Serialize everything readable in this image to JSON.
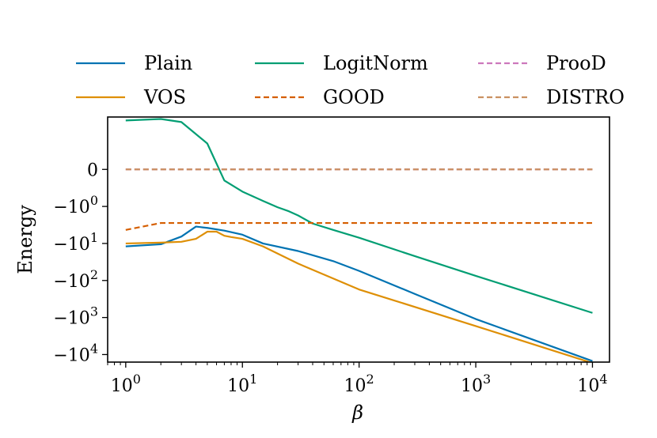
{
  "chart_data": {
    "type": "line",
    "title": "",
    "xlabel": "β",
    "ylabel": "Energy",
    "xscale": "log",
    "yscale": "symlog",
    "xlim": [
      0.7,
      14000
    ],
    "ylim": [
      -16000,
      2.6
    ],
    "xticks": [
      {
        "value": 1,
        "base": "10",
        "exp": "0"
      },
      {
        "value": 10,
        "base": "10",
        "exp": "1"
      },
      {
        "value": 100,
        "base": "10",
        "exp": "2"
      },
      {
        "value": 1000,
        "base": "10",
        "exp": "3"
      },
      {
        "value": 10000,
        "base": "10",
        "exp": "4"
      }
    ],
    "yticks": [
      {
        "value": 0,
        "text": "0",
        "base": "",
        "exp": ""
      },
      {
        "value": -1,
        "text": "",
        "base": "−10",
        "exp": "0"
      },
      {
        "value": -10,
        "text": "",
        "base": "−10",
        "exp": "1"
      },
      {
        "value": -100,
        "text": "",
        "base": "−10",
        "exp": "2"
      },
      {
        "value": -1000,
        "text": "",
        "base": "−10",
        "exp": "3"
      },
      {
        "value": -10000,
        "text": "",
        "base": "−10",
        "exp": "4"
      }
    ],
    "legend_position": "top",
    "series": [
      {
        "name": "Plain",
        "color": "#0173b2",
        "dash": "solid",
        "x": [
          1,
          2,
          3,
          4,
          5,
          7,
          10,
          15,
          30,
          60,
          100,
          300,
          1000,
          10000
        ],
        "y": [
          -12,
          -10.5,
          -6.5,
          -3.5,
          -3.8,
          -4.5,
          -5.8,
          -10,
          -16,
          -30,
          -55,
          -230,
          -1100,
          -15000
        ]
      },
      {
        "name": "VOS",
        "color": "#de8f05",
        "dash": "solid",
        "x": [
          1,
          2,
          3,
          4,
          5,
          6,
          7,
          8,
          10,
          15,
          30,
          100,
          1000,
          10000
        ],
        "y": [
          -10,
          -9.5,
          -9,
          -7.5,
          -4.8,
          -4.8,
          -6.2,
          -6.7,
          -7.5,
          -12,
          -35,
          -175,
          -1700,
          -17000
        ]
      },
      {
        "name": "LogitNorm",
        "color": "#029e73",
        "dash": "solid",
        "x": [
          1,
          2,
          3,
          5,
          7,
          10,
          15,
          20,
          25,
          30,
          40,
          60,
          100,
          300,
          1000,
          10000
        ],
        "y": [
          2.1,
          2.3,
          1.9,
          0.7,
          -0.3,
          -0.6,
          -0.85,
          -1.05,
          -1.35,
          -1.75,
          -2.9,
          -4.3,
          -7,
          -22,
          -75,
          -750
        ]
      },
      {
        "name": "GOOD",
        "color": "#d55e00",
        "dash": "dashed",
        "x": [
          1,
          2,
          10,
          100,
          1000,
          10000
        ],
        "y": [
          -4.3,
          -2.8,
          -2.8,
          -2.8,
          -2.8,
          -2.8
        ]
      },
      {
        "name": "ProoD",
        "color": "#cc78bc",
        "dash": "dashed",
        "x": [
          1,
          10000
        ],
        "y": [
          0,
          0
        ]
      },
      {
        "name": "DISTRO",
        "color": "#ca9161",
        "dash": "dashed",
        "x": [
          1,
          10,
          100,
          1000,
          10000
        ],
        "y": [
          0,
          0,
          0,
          0,
          0
        ]
      }
    ],
    "legend": [
      {
        "name": "Plain",
        "color": "#0173b2",
        "dash": "solid"
      },
      {
        "name": "LogitNorm",
        "color": "#029e73",
        "dash": "solid"
      },
      {
        "name": "ProoD",
        "color": "#cc78bc",
        "dash": "dashed"
      },
      {
        "name": "VOS",
        "color": "#de8f05",
        "dash": "solid"
      },
      {
        "name": "GOOD",
        "color": "#d55e00",
        "dash": "dashed"
      },
      {
        "name": "DISTRO",
        "color": "#ca9161",
        "dash": "dashed"
      }
    ]
  }
}
